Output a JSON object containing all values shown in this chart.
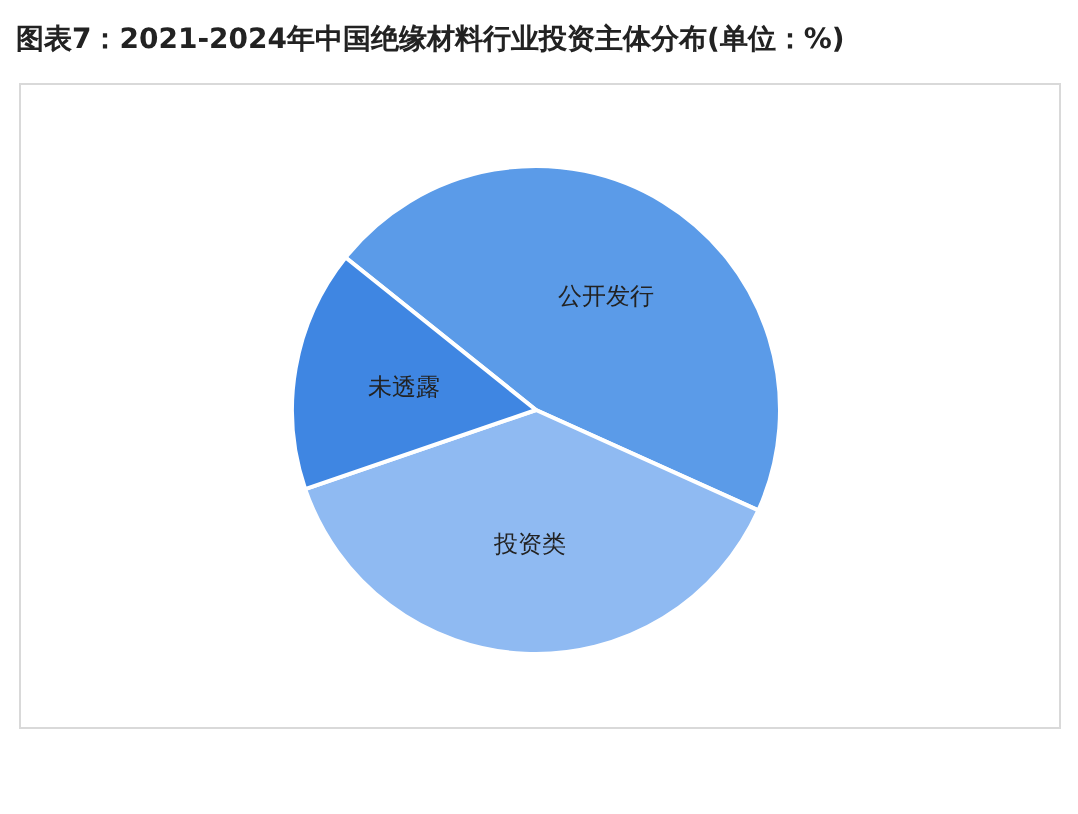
{
  "chart_data": {
    "type": "pie",
    "title": "图表7：2021-2024年中国绝缘材料行业投资主体分布(单位：%)",
    "categories": [
      "公开发行",
      "投资类",
      "未透露"
    ],
    "values": [
      46,
      38,
      16
    ],
    "colors": [
      "#5b9be8",
      "#8fbaf2",
      "#3f86e2"
    ]
  }
}
